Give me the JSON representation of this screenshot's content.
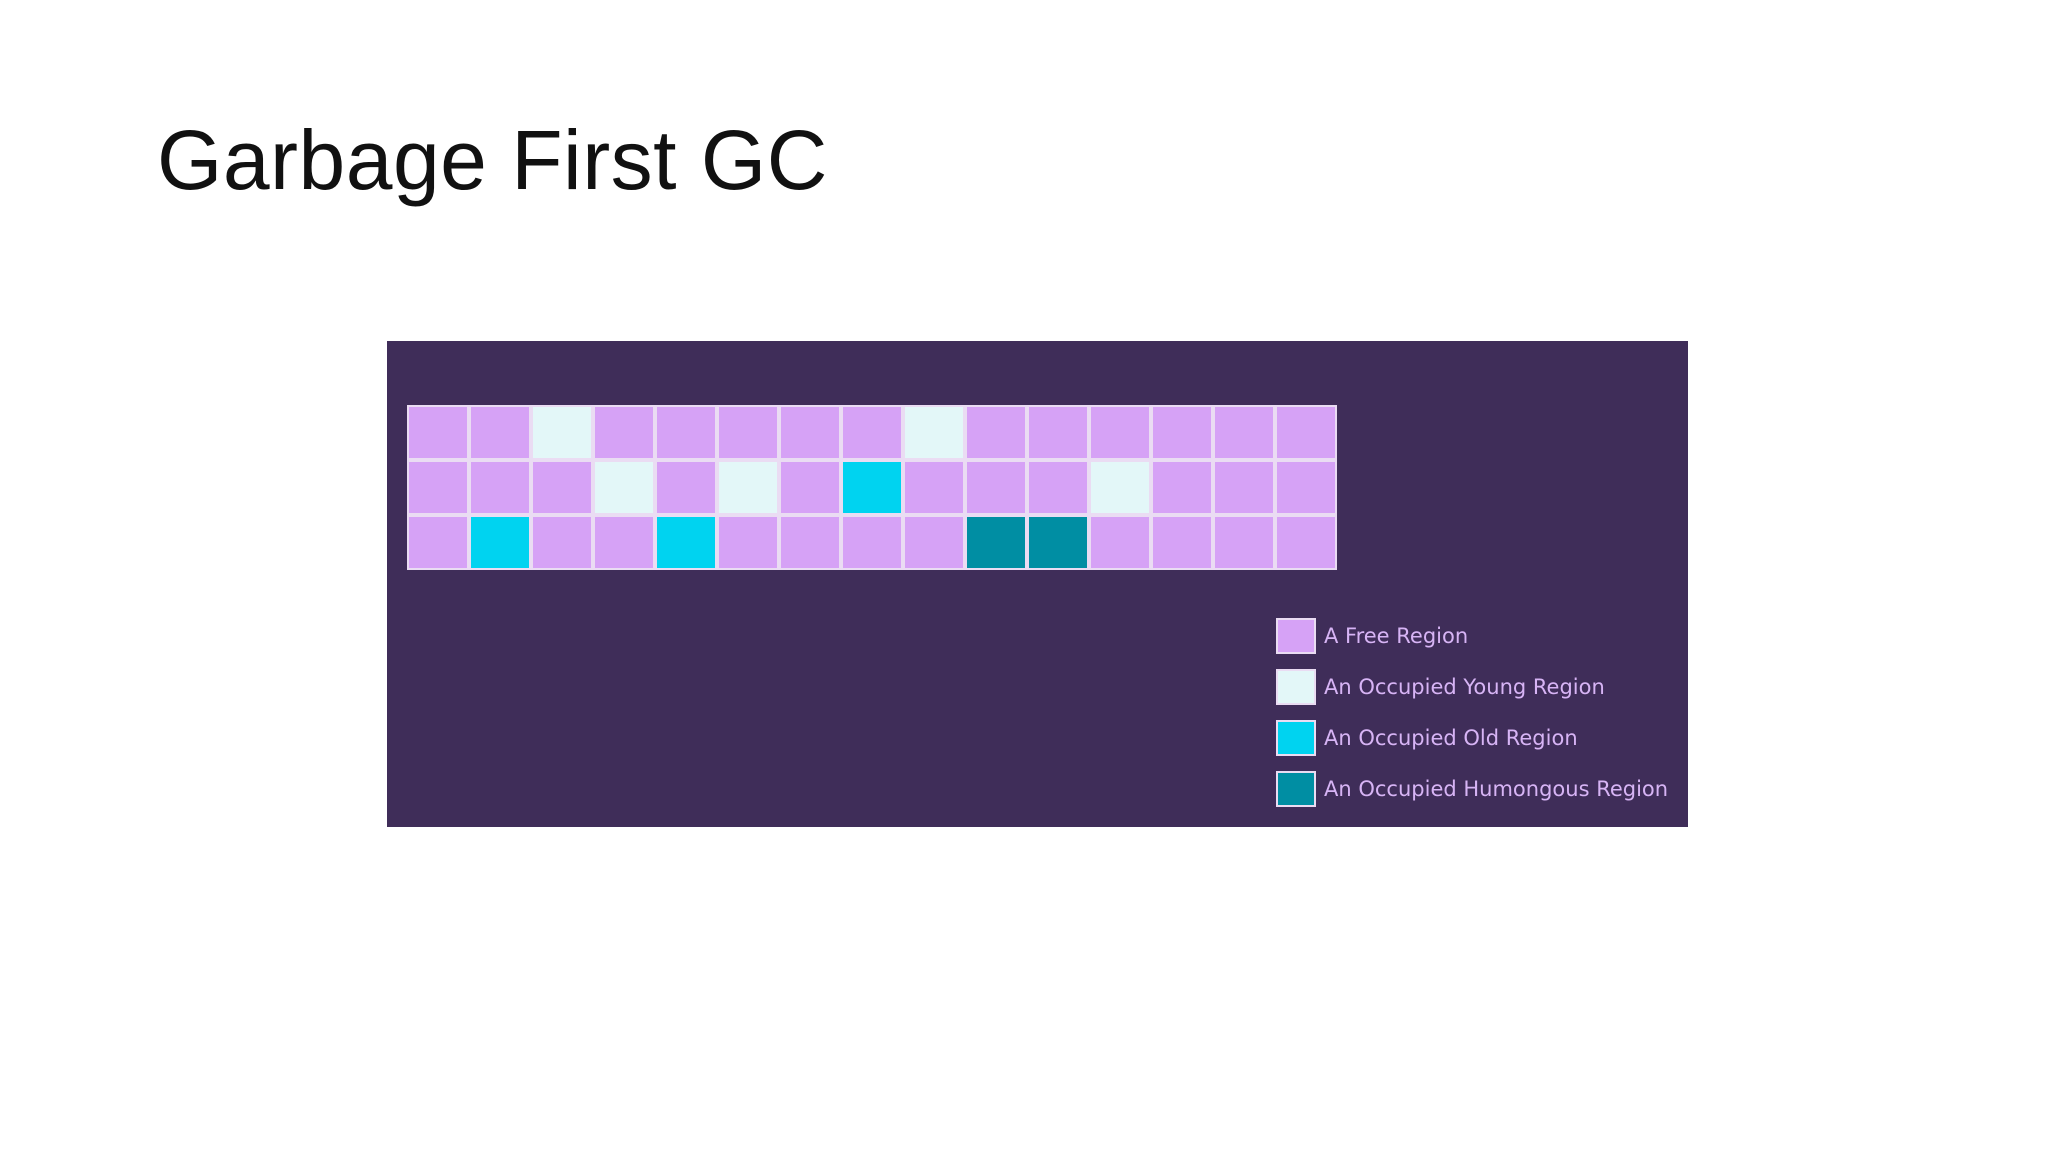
{
  "slide": {
    "title": "Garbage First GC"
  },
  "colors": {
    "panel_background": "#3f2d59",
    "free": "#d6a2f6",
    "young": "#e3f7f8",
    "old": "#00d3f0",
    "humongous": "#008ea3",
    "legend_text": "#d7b4f5"
  },
  "heap": {
    "rows": [
      [
        "free",
        "free",
        "young",
        "free",
        "free",
        "free",
        "free",
        "free",
        "young",
        "free",
        "free",
        "free",
        "free",
        "free",
        "free"
      ],
      [
        "free",
        "free",
        "free",
        "young",
        "free",
        "young",
        "free",
        "old",
        "free",
        "free",
        "free",
        "young",
        "free",
        "free",
        "free"
      ],
      [
        "free",
        "old",
        "free",
        "free",
        "old",
        "free",
        "free",
        "free",
        "free",
        "humongous",
        "humongous",
        "free",
        "free",
        "free",
        "free"
      ]
    ]
  },
  "legend": [
    {
      "type": "free",
      "label": "A Free Region"
    },
    {
      "type": "young",
      "label": "An Occupied Young Region"
    },
    {
      "type": "old",
      "label": "An Occupied Old Region"
    },
    {
      "type": "humongous",
      "label": "An Occupied Humongous Region"
    }
  ]
}
